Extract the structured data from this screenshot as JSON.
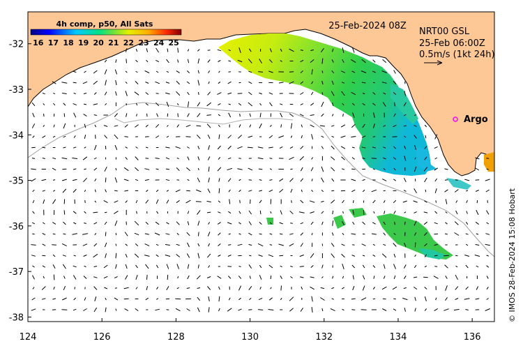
{
  "map": {
    "date_label": "25-Feb-2024 08Z",
    "product": {
      "line1": "NRT00 GSL",
      "line2": "25-Feb 06:00Z",
      "line3": "0.5m/s (1kt 24h)"
    },
    "colorbar": {
      "title": "4h comp, p50, All Sats",
      "min": 15.5,
      "max": 25.5,
      "ticks": [
        "16",
        "17",
        "18",
        "19",
        "20",
        "21",
        "22",
        "23",
        "24",
        "25"
      ],
      "colors": [
        "#00007f",
        "#0000ff",
        "#007fff",
        "#00ffff",
        "#7fff7f",
        "#ffff00",
        "#ff7f00",
        "#ff0000",
        "#7f0000"
      ]
    },
    "x_ticks": [
      "124",
      "126",
      "128",
      "130",
      "132",
      "134",
      "136"
    ],
    "y_ticks": [
      "-32",
      "-33",
      "-34",
      "-35",
      "-36",
      "-37",
      "-38"
    ],
    "lon_range": [
      124,
      136.6
    ],
    "lat_range": [
      -38.1,
      -31.3
    ],
    "argo_label": "Argo",
    "credit": "© IMOS 28-Feb-2024 15:08 Hobart",
    "colors": {
      "land": "#fdc896",
      "coast": "#000000",
      "shelf_line": "#a0a0a0",
      "argo_marker": "#ff00ff"
    }
  }
}
